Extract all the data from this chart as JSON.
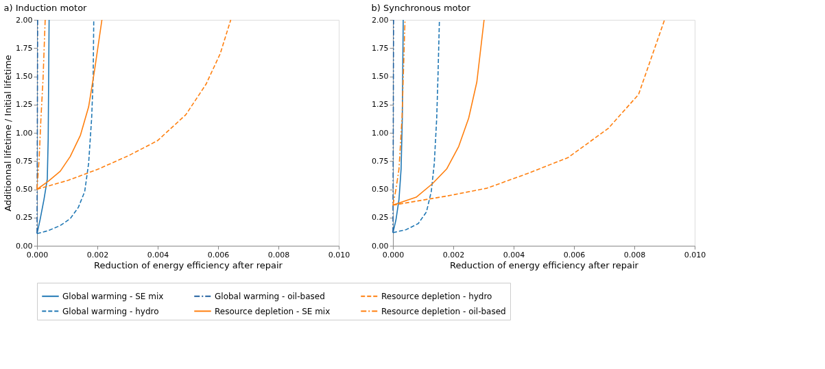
{
  "chart_data": [
    {
      "type": "line",
      "title": "a) Induction motor",
      "xlabel": "Reduction of energy efficiency after repair",
      "ylabel": "Additionnal lifetime / Initial lifetime",
      "xlim": [
        0,
        0.01
      ],
      "ylim": [
        0,
        2
      ],
      "xticks": [
        {
          "value": 0,
          "label": "0.000"
        },
        {
          "value": 0.002,
          "label": "0.002"
        },
        {
          "value": 0.004,
          "label": "0.004"
        },
        {
          "value": 0.006,
          "label": "0.006"
        },
        {
          "value": 0.008,
          "label": "0.008"
        },
        {
          "value": 0.01,
          "label": "0.010"
        }
      ],
      "yticks": [
        {
          "value": 0,
          "label": "0.00"
        },
        {
          "value": 0.25,
          "label": "0.25"
        },
        {
          "value": 0.5,
          "label": "0.50"
        },
        {
          "value": 0.75,
          "label": "0.75"
        },
        {
          "value": 1,
          "label": "1.00"
        },
        {
          "value": 1.25,
          "label": "1.25"
        },
        {
          "value": 1.5,
          "label": "1.50"
        },
        {
          "value": 1.75,
          "label": "1.75"
        },
        {
          "value": 2,
          "label": "2.00"
        }
      ],
      "grid": false,
      "legend": "bottom",
      "marker": "none",
      "series": [
        {
          "name": "Global warming - SE mix",
          "color": "#1f77b4",
          "line_style": "solid",
          "x": [
            0,
            0.0001,
            0.00023,
            0.00034,
            0.00037,
            0.0004
          ],
          "values": [
            0.107,
            0.23,
            0.41,
            0.59,
            0.95,
            2.0
          ]
        },
        {
          "name": "Global warming - hydro",
          "color": "#1f77b4",
          "line_style": "dashed",
          "x": [
            0,
            0.00037,
            0.00077,
            0.0011,
            0.00137,
            0.00158,
            0.00171,
            0.00181,
            0.00186,
            0.00188
          ],
          "values": [
            0.107,
            0.134,
            0.179,
            0.24,
            0.34,
            0.48,
            0.73,
            1.13,
            1.48,
            2.0
          ]
        },
        {
          "name": "Global warming - oil-based",
          "color": "#1f5f9e",
          "line_style": "dashdot",
          "x": [
            0,
            1e-05,
            2e-05
          ],
          "values": [
            0.11,
            1.0,
            2.0
          ]
        },
        {
          "name": "Resource depletion - SE mix",
          "color": "#ff7f0e",
          "line_style": "solid",
          "x": [
            0,
            0.00037,
            0.00077,
            0.0011,
            0.00144,
            0.00171,
            0.00191,
            0.00215
          ],
          "values": [
            0.5,
            0.57,
            0.66,
            0.79,
            0.98,
            1.23,
            1.56,
            2.0
          ]
        },
        {
          "name": "Resource depletion - hydro",
          "color": "#ff7f0e",
          "line_style": "dashed",
          "x": [
            0,
            0.00104,
            0.00204,
            0.00305,
            0.00399,
            0.00493,
            0.0056,
            0.00607,
            0.00642
          ],
          "values": [
            0.5,
            0.58,
            0.68,
            0.8,
            0.93,
            1.16,
            1.43,
            1.7,
            2.0
          ]
        },
        {
          "name": "Resource depletion - oil-based",
          "color": "#ff7f0e",
          "line_style": "dashdot",
          "x": [
            0,
            7e-05,
            0.00013,
            0.0002,
            0.00027
          ],
          "values": [
            0.5,
            0.77,
            1.13,
            1.48,
            2.0
          ]
        }
      ]
    },
    {
      "type": "line",
      "title": "b) Synchronous motor",
      "xlabel": "Reduction of energy efficiency after repair",
      "xlim": [
        0,
        0.01
      ],
      "ylim": [
        0,
        2
      ],
      "xticks": [
        {
          "value": 0,
          "label": "0.000"
        },
        {
          "value": 0.002,
          "label": "0.002"
        },
        {
          "value": 0.004,
          "label": "0.004"
        },
        {
          "value": 0.006,
          "label": "0.006"
        },
        {
          "value": 0.008,
          "label": "0.008"
        },
        {
          "value": 0.01,
          "label": "0.010"
        }
      ],
      "yticks": [
        {
          "value": 0,
          "label": "0.00"
        },
        {
          "value": 0.25,
          "label": "0.25"
        },
        {
          "value": 0.5,
          "label": "0.50"
        },
        {
          "value": 0.75,
          "label": "0.75"
        },
        {
          "value": 1,
          "label": "1.00"
        },
        {
          "value": 1.25,
          "label": "1.25"
        },
        {
          "value": 1.5,
          "label": "1.50"
        },
        {
          "value": 1.75,
          "label": "1.75"
        },
        {
          "value": 2,
          "label": "2.00"
        }
      ],
      "grid": false,
      "legend": "bottom",
      "marker": "none",
      "series": [
        {
          "name": "Global warming - SE mix",
          "color": "#1f77b4",
          "line_style": "solid",
          "x": [
            0,
            0.0001,
            0.0002,
            0.00027,
            0.00031,
            0.00034
          ],
          "values": [
            0.116,
            0.23,
            0.41,
            0.68,
            1.13,
            2.0
          ]
        },
        {
          "name": "Global warming - hydro",
          "color": "#1f77b4",
          "line_style": "dashed",
          "x": [
            0,
            0.00044,
            0.00084,
            0.00111,
            0.00127,
            0.00137,
            0.00145,
            0.00149,
            0.00154
          ],
          "values": [
            0.116,
            0.143,
            0.197,
            0.3,
            0.48,
            0.73,
            1.13,
            1.48,
            2.0
          ]
        },
        {
          "name": "Global warming - oil-based",
          "color": "#1f5f9e",
          "line_style": "dashdot",
          "x": [
            0,
            1e-05,
            2e-05
          ],
          "values": [
            0.116,
            1.0,
            2.0
          ]
        },
        {
          "name": "Resource depletion - SE mix",
          "color": "#ff7f0e",
          "line_style": "solid",
          "x": [
            0,
            0.00077,
            0.00131,
            0.00178,
            0.00218,
            0.00251,
            0.00278,
            0.00302
          ],
          "values": [
            0.36,
            0.43,
            0.55,
            0.68,
            0.88,
            1.13,
            1.45,
            2.0
          ]
        },
        {
          "name": "Resource depletion - hydro",
          "color": "#ff7f0e",
          "line_style": "dashed",
          "x": [
            0,
            0.00178,
            0.00312,
            0.00446,
            0.0058,
            0.00714,
            0.00814,
            0.009
          ],
          "values": [
            0.36,
            0.44,
            0.51,
            0.64,
            0.78,
            1.04,
            1.34,
            2.0
          ]
        },
        {
          "name": "Resource depletion - oil-based",
          "color": "#ff7f0e",
          "line_style": "dashdot",
          "x": [
            0,
            0.0001,
            0.0002,
            0.0003,
            0.0004
          ],
          "values": [
            0.36,
            0.5,
            0.68,
            1.13,
            2.0
          ]
        }
      ]
    }
  ]
}
